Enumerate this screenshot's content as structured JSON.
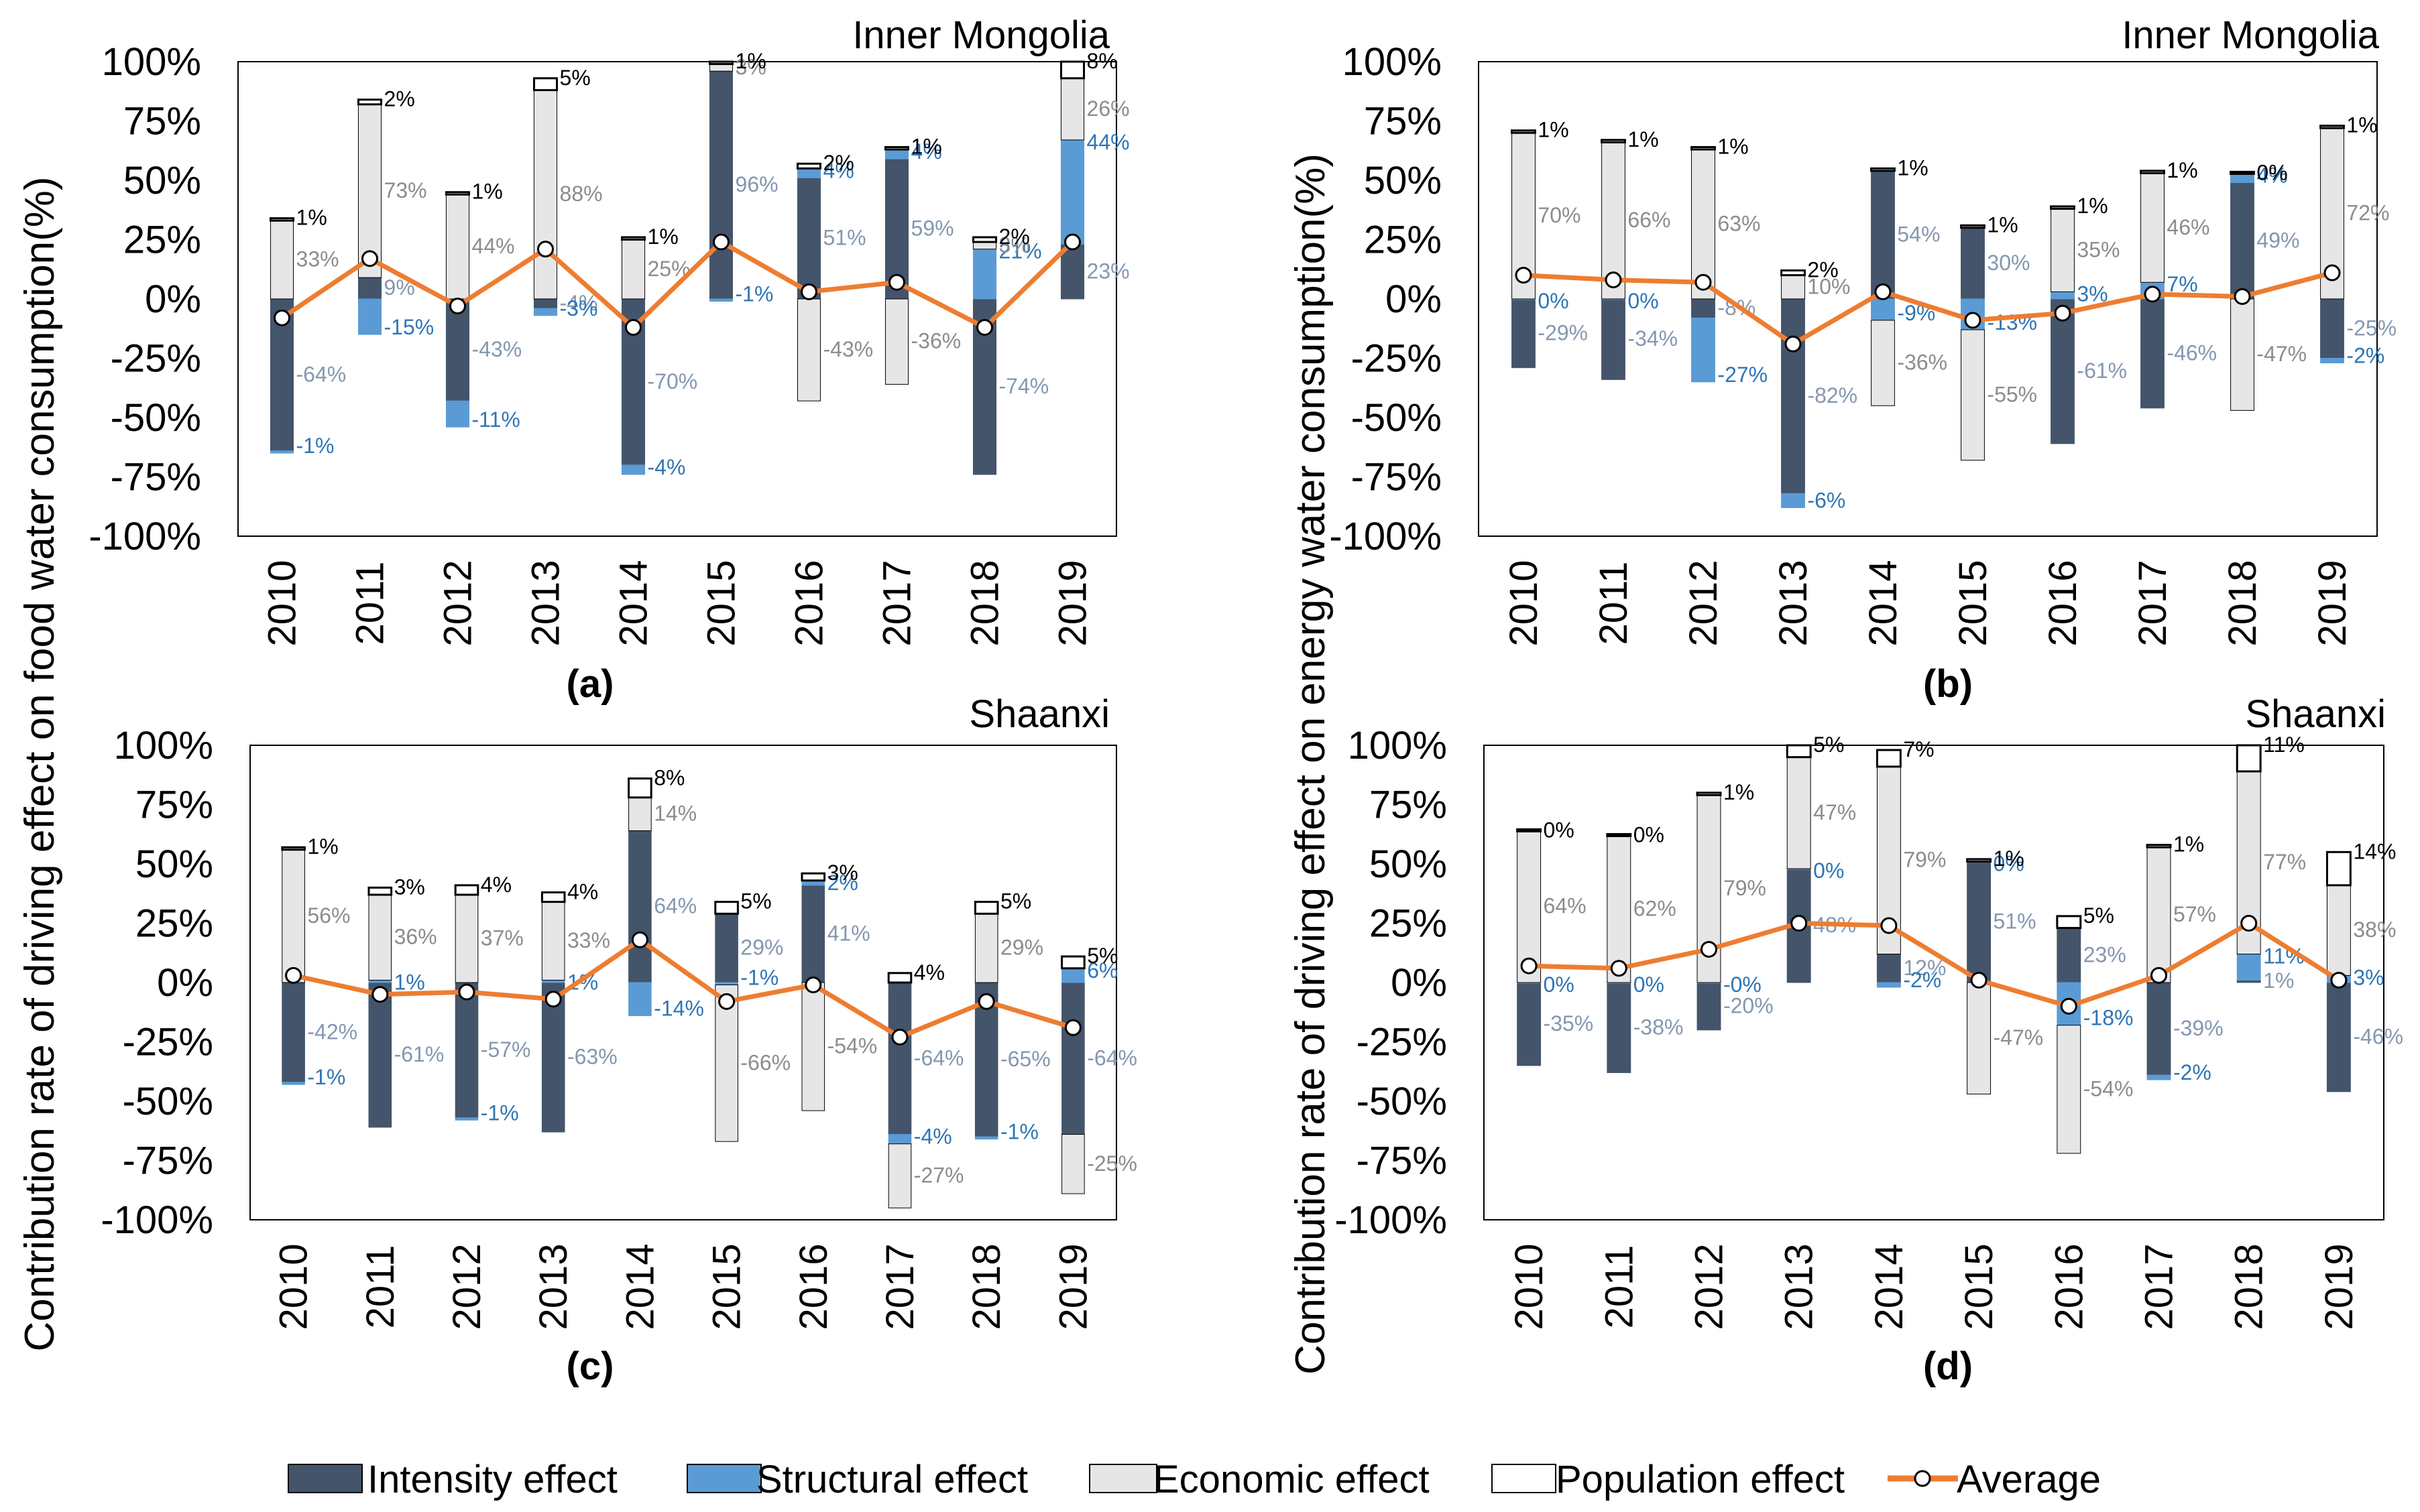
{
  "y_axis_label_left": "Contribution rate of driving effect on food water consumption(%)",
  "y_axis_label_right": "Contribution rate of driving effect on energy water consumption(%)",
  "legend": {
    "intensity": "Intensity effect",
    "structural": "Structural effect",
    "economic": "Economic effect",
    "population": "Population effect",
    "average": "Average"
  },
  "colors": {
    "intensity": "#44546a",
    "structural": "#5b9bd5",
    "economic": "#e7e6e6",
    "population": "#ffffff",
    "average": "#ed7d31",
    "label_intensity": "#8497b0",
    "label_structural": "#2e75b6",
    "label_economic": "#8c8c8c",
    "label_population": "#000000"
  },
  "chart_data": [
    {
      "type": "bar",
      "stacked": true,
      "panel_label": "(a)",
      "title": "Inner Mongolia",
      "ylabel": "Contribution rate of driving effect on food water consumption(%)",
      "ylim": [
        -100,
        100
      ],
      "yticks": [
        "100%",
        "75%",
        "50%",
        "25%",
        "0%",
        "-25%",
        "-50%",
        "-75%",
        "-100%"
      ],
      "categories": [
        "2010",
        "2011",
        "2012",
        "2013",
        "2014",
        "2015",
        "2016",
        "2017",
        "2018",
        "2019"
      ],
      "series": [
        {
          "name": "Intensity effect",
          "key": "intensity",
          "values": [
            -64,
            9,
            -43,
            -4,
            -70,
            96,
            51,
            59,
            -74,
            23
          ]
        },
        {
          "name": "Structural effect",
          "key": "structural",
          "values": [
            -1,
            -15,
            -11,
            -3,
            -4,
            -1,
            4,
            4,
            21,
            44
          ]
        },
        {
          "name": "Economic effect",
          "key": "economic",
          "values": [
            33,
            73,
            44,
            88,
            25,
            3,
            -43,
            -36,
            3,
            26
          ]
        },
        {
          "name": "Population effect",
          "key": "population",
          "values": [
            1,
            2,
            1,
            5,
            1,
            1,
            2,
            1,
            2,
            8
          ]
        }
      ],
      "labels": [
        {
          "intensity": "-64%",
          "structural": "-1%",
          "economic": "33%",
          "population": "1%"
        },
        {
          "intensity": "9%",
          "structural": "-15%",
          "economic": "73%",
          "population": "2%"
        },
        {
          "intensity": "-43%",
          "structural": "-11%",
          "economic": "44%",
          "population": "1%"
        },
        {
          "intensity": "-4%",
          "structural": "-3%",
          "economic": "88%",
          "population": "5%"
        },
        {
          "intensity": "-70%",
          "structural": "-4%",
          "economic": "25%",
          "population": "1%"
        },
        {
          "intensity": "96%",
          "structural": "-1%",
          "economic": "3%",
          "population": "1%"
        },
        {
          "intensity": "51%",
          "structural": "4%",
          "economic": "-43%",
          "population": "2%"
        },
        {
          "intensity": "59%",
          "structural": "4%",
          "economic": "-36%",
          "population": "1%"
        },
        {
          "intensity": "-74%",
          "structural": "21%",
          "economic": "3%",
          "population": "2%"
        },
        {
          "intensity": "23%",
          "structural": "44%",
          "economic": "26%",
          "population": "8%"
        }
      ],
      "average": [
        -8,
        17,
        -3,
        21,
        -12,
        24,
        3,
        7,
        -12,
        24
      ]
    },
    {
      "type": "bar",
      "stacked": true,
      "panel_label": "(b)",
      "title": "Inner Mongolia",
      "ylabel": "Contribution rate of driving effect on energy water consumption(%)",
      "ylim": [
        -100,
        100
      ],
      "yticks": [
        "100%",
        "75%",
        "50%",
        "25%",
        "0%",
        "-25%",
        "-50%",
        "-75%",
        "-100%"
      ],
      "categories": [
        "2010",
        "2011",
        "2012",
        "2013",
        "2014",
        "2015",
        "2016",
        "2017",
        "2018",
        "2019"
      ],
      "series": [
        {
          "name": "Intensity effect",
          "key": "intensity",
          "values": [
            -29,
            -34,
            -8,
            -82,
            54,
            30,
            -61,
            -46,
            49,
            -25
          ]
        },
        {
          "name": "Structural effect",
          "key": "structural",
          "values": [
            0,
            0,
            -27,
            -6,
            -9,
            -13,
            3,
            7,
            4,
            -2
          ]
        },
        {
          "name": "Economic effect",
          "key": "economic",
          "values": [
            70,
            66,
            63,
            10,
            -36,
            -55,
            35,
            46,
            -47,
            72
          ]
        },
        {
          "name": "Population effect",
          "key": "population",
          "values": [
            1,
            1,
            1,
            2,
            1,
            1,
            1,
            1,
            0,
            1
          ]
        }
      ],
      "labels": [
        {
          "intensity": "-29%",
          "structural": "0%",
          "economic": "70%",
          "population": "1%"
        },
        {
          "intensity": "-34%",
          "structural": "0%",
          "economic": "66%",
          "population": "1%"
        },
        {
          "intensity": "-8%",
          "structural": "-27%",
          "economic": "63%",
          "population": "1%"
        },
        {
          "intensity": "-82%",
          "structural": "-6%",
          "economic": "10%",
          "population": "2%"
        },
        {
          "intensity": "54%",
          "structural": "-9%",
          "economic": "-36%",
          "population": "1%"
        },
        {
          "intensity": "30%",
          "structural": "-13%",
          "economic": "-55%",
          "population": "1%"
        },
        {
          "intensity": "-61%",
          "structural": "3%",
          "economic": "35%",
          "population": "1%"
        },
        {
          "intensity": "-46%",
          "structural": "7%",
          "economic": "46%",
          "population": "1%"
        },
        {
          "intensity": "49%",
          "structural": "4%",
          "economic": "-47%",
          "population": "0%"
        },
        {
          "intensity": "-25%",
          "structural": "-2%",
          "economic": "72%",
          "population": "1%"
        }
      ],
      "average": [
        10,
        8,
        7,
        -19,
        3,
        -9,
        -6,
        2,
        1,
        11
      ]
    },
    {
      "type": "bar",
      "stacked": true,
      "panel_label": "(c)",
      "title": "Shaanxi",
      "ylabel": "Contribution rate of driving effect on food water consumption(%)",
      "ylim": [
        -100,
        100
      ],
      "yticks": [
        "100%",
        "75%",
        "50%",
        "25%",
        "0%",
        "-25%",
        "-50%",
        "-75%",
        "-100%"
      ],
      "categories": [
        "2010",
        "2011",
        "2012",
        "2013",
        "2014",
        "2015",
        "2016",
        "2017",
        "2018",
        "2019"
      ],
      "series": [
        {
          "name": "Intensity effect",
          "key": "intensity",
          "values": [
            -42,
            -61,
            -57,
            -63,
            64,
            29,
            41,
            -64,
            -65,
            -64
          ]
        },
        {
          "name": "Structural effect",
          "key": "structural",
          "values": [
            -1,
            1,
            -1,
            1,
            -14,
            -1,
            2,
            -4,
            -1,
            6
          ]
        },
        {
          "name": "Economic effect",
          "key": "economic",
          "values": [
            56,
            36,
            37,
            33,
            14,
            -66,
            -54,
            -27,
            29,
            -25
          ]
        },
        {
          "name": "Population effect",
          "key": "population",
          "values": [
            1,
            3,
            4,
            4,
            8,
            5,
            3,
            4,
            5,
            5
          ]
        }
      ],
      "labels": [
        {
          "intensity": "-42%",
          "structural": "-1%",
          "economic": "56%",
          "population": "1%"
        },
        {
          "intensity": "-61%",
          "structural": "1%",
          "economic": "36%",
          "population": "3%"
        },
        {
          "intensity": "-57%",
          "structural": "-1%",
          "economic": "37%",
          "population": "4%"
        },
        {
          "intensity": "-63%",
          "structural": "1%",
          "economic": "33%",
          "population": "4%"
        },
        {
          "intensity": "64%",
          "structural": "-14%",
          "economic": "14%",
          "population": "8%"
        },
        {
          "intensity": "29%",
          "structural": "-1%",
          "economic": "-66%",
          "population": "5%"
        },
        {
          "intensity": "41%",
          "structural": "2%",
          "economic": "-54%",
          "population": "3%"
        },
        {
          "intensity": "-64%",
          "structural": "-4%",
          "economic": "-27%",
          "population": "4%"
        },
        {
          "intensity": "-65%",
          "structural": "-1%",
          "economic": "29%",
          "population": "5%"
        },
        {
          "intensity": "-64%",
          "structural": "6%",
          "economic": "-25%",
          "population": "5%"
        }
      ],
      "average": [
        3,
        -5,
        -4,
        -7,
        18,
        -8,
        -1,
        -23,
        -8,
        -19
      ]
    },
    {
      "type": "bar",
      "stacked": true,
      "panel_label": "(d)",
      "title": "Shaanxi",
      "ylabel": "Contribution rate of driving effect on energy water consumption(%)",
      "ylim": [
        -100,
        100
      ],
      "yticks": [
        "100%",
        "75%",
        "50%",
        "25%",
        "0%",
        "-25%",
        "-50%",
        "-75%",
        "-100%"
      ],
      "categories": [
        "2010",
        "2011",
        "2012",
        "2013",
        "2014",
        "2015",
        "2016",
        "2017",
        "2018",
        "2019"
      ],
      "series": [
        {
          "name": "Intensity effect",
          "key": "intensity",
          "values": [
            -35,
            -38,
            -20,
            48,
            12,
            51,
            23,
            -39,
            1,
            -46
          ]
        },
        {
          "name": "Structural effect",
          "key": "structural",
          "values": [
            0,
            0,
            0,
            0,
            -2,
            0,
            -18,
            -2,
            11,
            3
          ]
        },
        {
          "name": "Economic effect",
          "key": "economic",
          "values": [
            64,
            62,
            79,
            47,
            79,
            -47,
            -54,
            57,
            77,
            38
          ]
        },
        {
          "name": "Population effect",
          "key": "population",
          "values": [
            0,
            0,
            1,
            5,
            7,
            1,
            5,
            1,
            11,
            14
          ]
        }
      ],
      "labels": [
        {
          "intensity": "-35%",
          "structural": "0%",
          "economic": "64%",
          "population": "0%"
        },
        {
          "intensity": "-38%",
          "structural": "0%",
          "economic": "62%",
          "population": "0%"
        },
        {
          "intensity": "-20%",
          "structural": "-0%",
          "economic": "79%",
          "population": "1%"
        },
        {
          "intensity": "48%",
          "structural": "0%",
          "economic": "47%",
          "population": "5%"
        },
        {
          "intensity": "12%",
          "structural": "-2%",
          "economic": "79%",
          "population": "7%"
        },
        {
          "intensity": "51%",
          "structural": "0%",
          "economic": "-47%",
          "population": "1%"
        },
        {
          "intensity": "23%",
          "structural": "-18%",
          "economic": "-54%",
          "population": "5%"
        },
        {
          "intensity": "-39%",
          "structural": "-2%",
          "economic": "57%",
          "population": "1%"
        },
        {
          "intensity": "1%",
          "structural": "11%",
          "economic": "77%",
          "population": "11%"
        },
        {
          "intensity": "-46%",
          "structural": "3%",
          "economic": "38%",
          "population": "14%"
        }
      ],
      "average": [
        7,
        6,
        14,
        25,
        24,
        1,
        -10,
        3,
        25,
        1
      ]
    }
  ]
}
